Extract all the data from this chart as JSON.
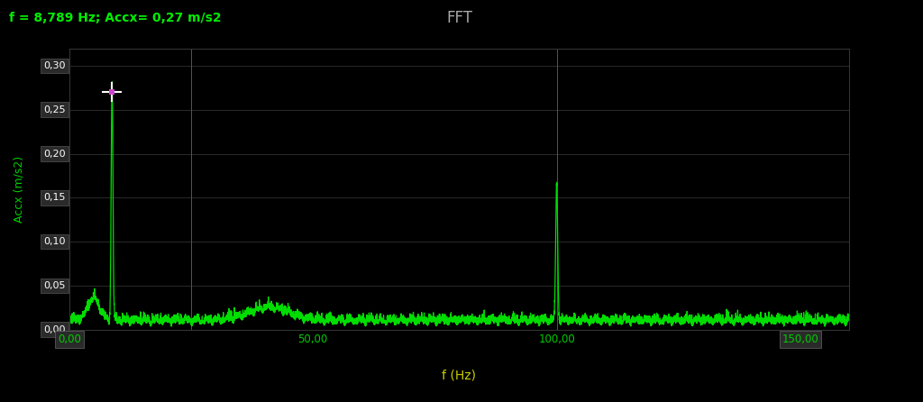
{
  "title": "FFT",
  "xlabel": "f (Hz)",
  "ylabel": "Accx (m/s2)",
  "header_text": "f = 8,789 Hz; Accx= 0,27 m/s2",
  "background_color": "#000000",
  "plot_bg_color": "#000000",
  "line_color": "#00dd00",
  "grid_color": "#3a3a3a",
  "text_color_green": "#00ee00",
  "tick_label_color": "#00cc00",
  "xlabel_color": "#cccc00",
  "title_color": "#aaaaaa",
  "xlim": [
    0,
    160
  ],
  "ylim": [
    0.0,
    0.32
  ],
  "yticks": [
    0.0,
    0.05,
    0.1,
    0.15,
    0.2,
    0.25,
    0.3
  ],
  "xticks": [
    0.0,
    50.0,
    100.0,
    150.0
  ],
  "peak1_freq": 8.789,
  "peak1_amp": 0.27,
  "peak2_freq": 100.0,
  "peak2_amp": 0.155,
  "vline1_freq": 25.0,
  "vline2_freq": 100.0,
  "figsize": [
    10.24,
    4.46
  ],
  "dpi": 100
}
